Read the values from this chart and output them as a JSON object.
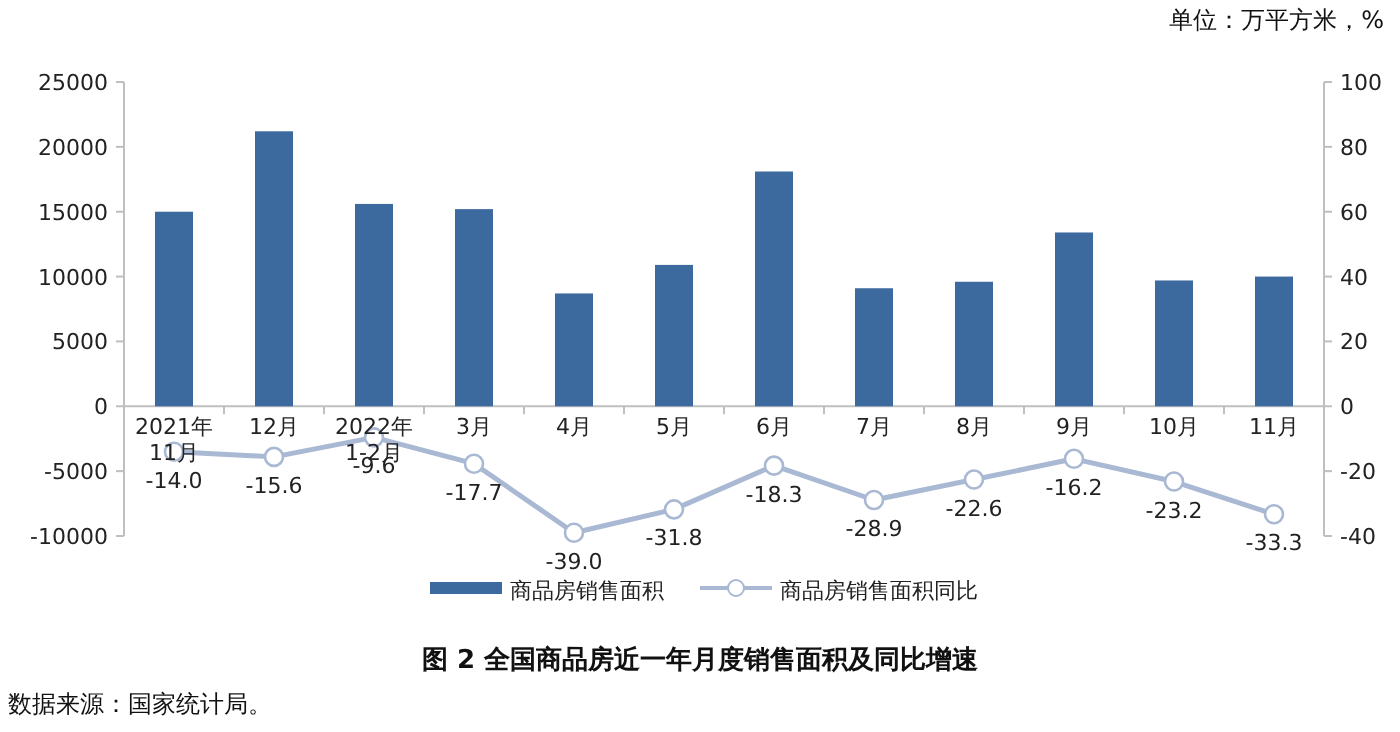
{
  "chart_data": {
    "type": "bar",
    "title": "图 2 全国商品房近一年月度销售面积及同比增速",
    "annotations": [
      "单位：万平方米，%",
      "数据来源：国家统计局。"
    ],
    "categories": [
      "2021年 11月",
      "12月",
      "2022年 1-2月",
      "3月",
      "4月",
      "5月",
      "6月",
      "7月",
      "8月",
      "9月",
      "10月",
      "11月"
    ],
    "series": [
      {
        "name": "商品房销售面积",
        "color": "#3d6a9e",
        "values": [
          15000,
          21200,
          15600,
          15200,
          8700,
          10900,
          18100,
          9100,
          9600,
          13400,
          9700,
          10000
        ]
      },
      {
        "name": "商品房销售面积同比",
        "type": "line",
        "axis": "y2",
        "color": "#a9b8d3",
        "marker": "circle",
        "values": [
          -14.0,
          -15.6,
          -9.6,
          -17.7,
          -39.0,
          -31.8,
          -18.3,
          -28.9,
          -22.6,
          -16.2,
          -23.2,
          -33.3
        ],
        "value_labels": [
          "-14.0",
          "-15.6",
          "-9.6",
          "-17.7",
          "-39.0",
          "-31.8",
          "-18.3",
          "-28.9",
          "-22.6",
          "-16.2",
          "-23.2",
          "-33.3"
        ]
      }
    ],
    "ylim": [
      -10000,
      25000
    ],
    "yticks": [
      -10000,
      -5000,
      0,
      5000,
      10000,
      15000,
      20000,
      25000
    ],
    "y2lim": [
      -40,
      100
    ],
    "y2ticks": [
      -40,
      -20,
      0,
      20,
      40,
      60,
      80,
      100
    ],
    "legend": "bottom",
    "grid": false
  }
}
